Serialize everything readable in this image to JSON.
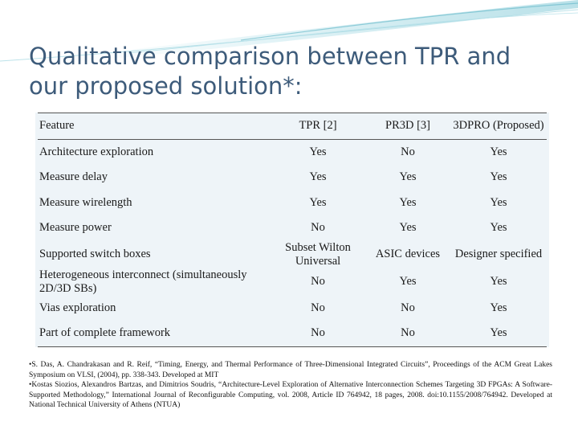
{
  "slide": {
    "title": "Qualitative comparison between TPR and our proposed solution*:",
    "accent_color": "#3d5b7a",
    "decoration_color": "#7fc8d6"
  },
  "table": {
    "headers": [
      "Feature",
      "TPR [2]",
      "PR3D [3]",
      "3DPRO (Proposed)"
    ],
    "rows": [
      [
        "Architecture exploration",
        "Yes",
        "No",
        "Yes"
      ],
      [
        "Measure delay",
        "Yes",
        "Yes",
        "Yes"
      ],
      [
        "Measure wirelength",
        "Yes",
        "Yes",
        "Yes"
      ],
      [
        "Measure power",
        "No",
        "Yes",
        "Yes"
      ],
      [
        "Supported switch boxes",
        "Subset Wilton Universal",
        "ASIC devices",
        "Designer specified"
      ],
      [
        "Heterogeneous interconnect (simultaneously 2D/3D SBs)",
        "No",
        "Yes",
        "Yes"
      ],
      [
        "Vias exploration",
        "No",
        "No",
        "Yes"
      ],
      [
        "Part of complete framework",
        "No",
        "No",
        "Yes"
      ]
    ]
  },
  "footnotes": [
    "•S. Das, A. Chandrakasan and R. Reif, “Timing, Energy, and Thermal Performance of Three-Dimensional Integrated Circuits”, Proceedings of the ACM Great Lakes Symposium on VLSI, (2004), pp. 338-343. Developed at MIT",
    "•Kostas Siozios, Alexandros Bartzas, and Dimitrios Soudris, “Architecture-Level Exploration of Alternative Interconnection Schemes Targeting 3D FPGAs: A Software-Supported Methodology,” International Journal of Reconfigurable Computing, vol. 2008, Article ID 764942, 18 pages, 2008. doi:10.1155/2008/764942. Developed at National Technical University of Athens (NTUA)"
  ]
}
